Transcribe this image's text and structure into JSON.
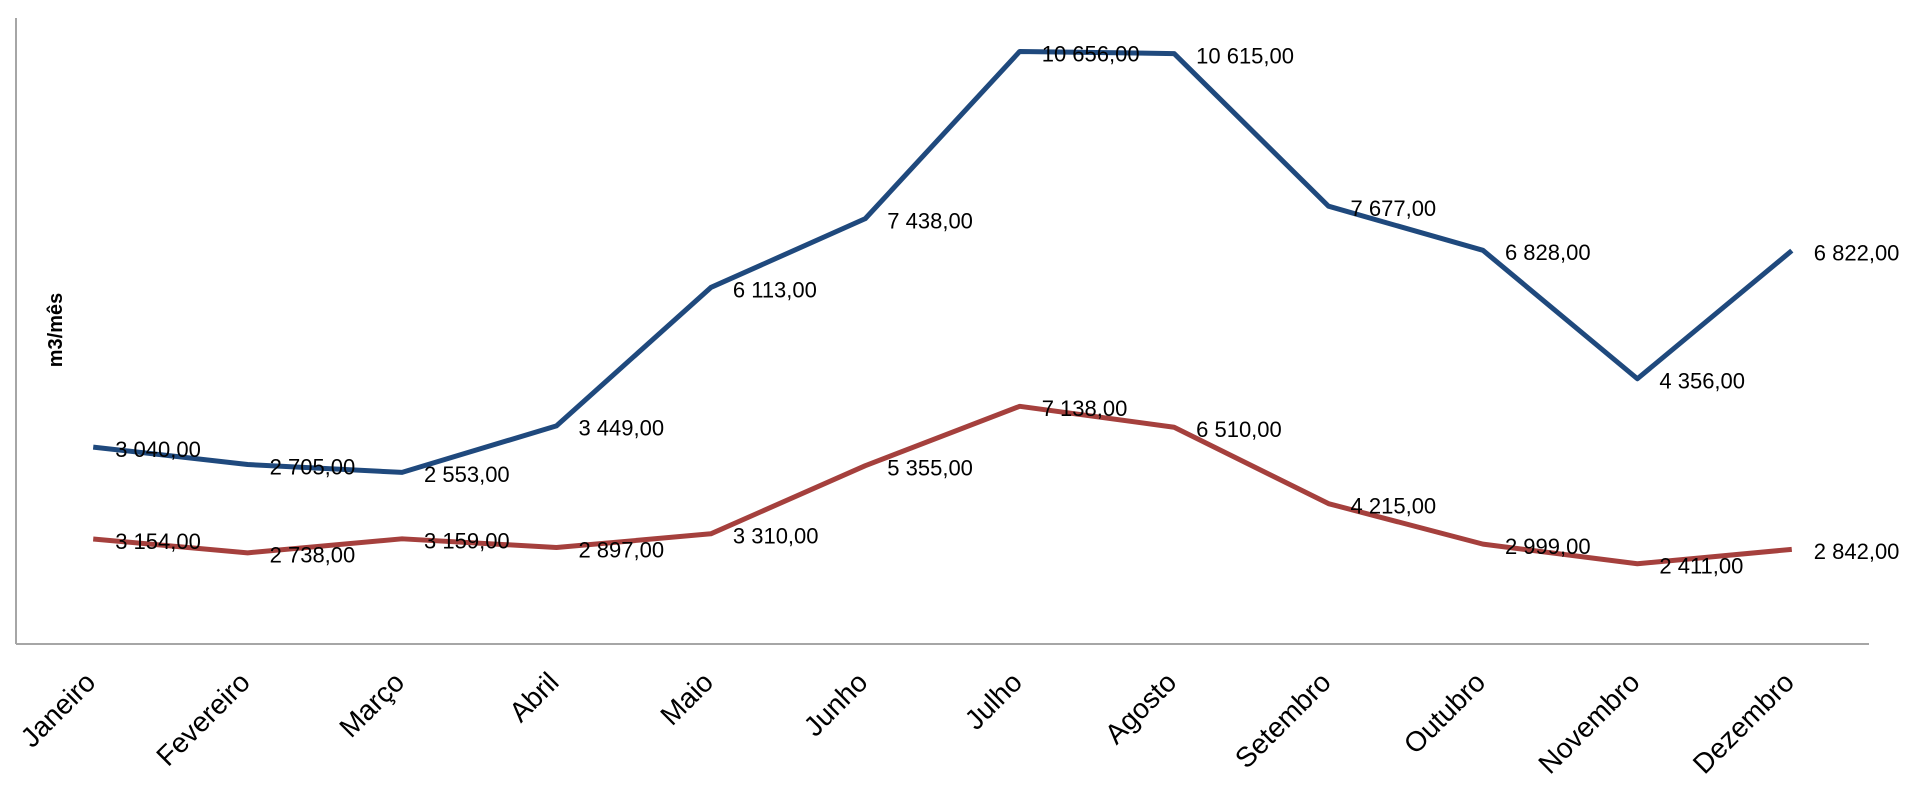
{
  "chart_data": {
    "type": "line",
    "y_label": "m3/mês",
    "categories": [
      "Janeiro",
      "Fevereiro",
      "Março",
      "Abril",
      "Maio",
      "Junho",
      "Julho",
      "Agosto",
      "Setembro",
      "Outubro",
      "Novembro",
      "Dezembro"
    ],
    "series": [
      {
        "color": "#1f497d",
        "values": [
          3040,
          2705,
          2553,
          3449,
          6113,
          7438,
          10656,
          10615,
          7677,
          6828,
          4356,
          6822
        ],
        "value_labels": [
          "3 040,00",
          "2 705,00",
          "2 553,00",
          "3 449,00",
          "6 113,00",
          "7 438,00",
          "10 656,00",
          "10 615,00",
          "7 677,00",
          "6 828,00",
          "4 356,00",
          "6 822,00"
        ]
      },
      {
        "color": "#a5403d",
        "axis": "y2",
        "values": [
          3154,
          2738,
          3159,
          2897,
          3310,
          5355,
          7138,
          6510,
          4215,
          2999,
          2411,
          2842
        ],
        "value_labels": [
          "3 154,00",
          "2 738,00",
          "3 159,00",
          "2 897,00",
          "3 310,00",
          "5 355,00",
          "7 138,00",
          "6 510,00",
          "4 215,00",
          "2 999,00",
          "2 411,00",
          "2 842,00"
        ]
      }
    ],
    "ylim": [
      -750,
      11300
    ],
    "y2lim": [
      0,
      18800
    ]
  }
}
